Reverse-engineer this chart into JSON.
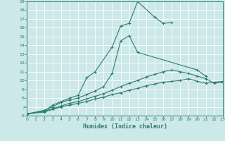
{
  "bg_color": "#cce8e8",
  "grid_color": "#ffffff",
  "line_color": "#2e7d6e",
  "xlabel": "Humidex (Indice chaleur)",
  "xmin": 0,
  "xmax": 23,
  "ymin": 6,
  "ymax": 19,
  "lines": [
    {
      "x": [
        0,
        2,
        3,
        5,
        6,
        7,
        8,
        10,
        11,
        12,
        13,
        15,
        16,
        17
      ],
      "y": [
        6.2,
        6.5,
        7.2,
        8.0,
        8.3,
        10.3,
        11.0,
        13.8,
        16.2,
        16.5,
        19.0,
        17.2,
        16.5,
        16.6
      ]
    },
    {
      "x": [
        0,
        2,
        3,
        4,
        5,
        6,
        7,
        8,
        9,
        10,
        11,
        12,
        13,
        20,
        21
      ],
      "y": [
        6.2,
        6.6,
        7.0,
        7.5,
        7.8,
        8.0,
        8.4,
        8.8,
        9.3,
        10.8,
        14.5,
        15.1,
        13.2,
        11.2,
        10.5
      ]
    },
    {
      "x": [
        0,
        2,
        3,
        4,
        5,
        6,
        7,
        8,
        9,
        10,
        11,
        12,
        13,
        14,
        15,
        16,
        17,
        18,
        19,
        20,
        21,
        22,
        23
      ],
      "y": [
        6.2,
        6.5,
        6.8,
        7.1,
        7.4,
        7.6,
        7.9,
        8.2,
        8.5,
        8.9,
        9.3,
        9.7,
        10.0,
        10.4,
        10.7,
        11.0,
        11.2,
        11.0,
        10.8,
        10.5,
        10.2,
        9.7,
        9.8
      ]
    },
    {
      "x": [
        0,
        2,
        3,
        4,
        5,
        6,
        7,
        8,
        9,
        10,
        11,
        12,
        13,
        14,
        15,
        16,
        17,
        18,
        19,
        20,
        21,
        22,
        23
      ],
      "y": [
        6.2,
        6.4,
        6.7,
        7.0,
        7.2,
        7.4,
        7.6,
        7.9,
        8.1,
        8.4,
        8.6,
        8.9,
        9.1,
        9.4,
        9.6,
        9.8,
        9.9,
        10.0,
        10.2,
        9.9,
        9.7,
        9.8,
        9.9
      ]
    }
  ]
}
